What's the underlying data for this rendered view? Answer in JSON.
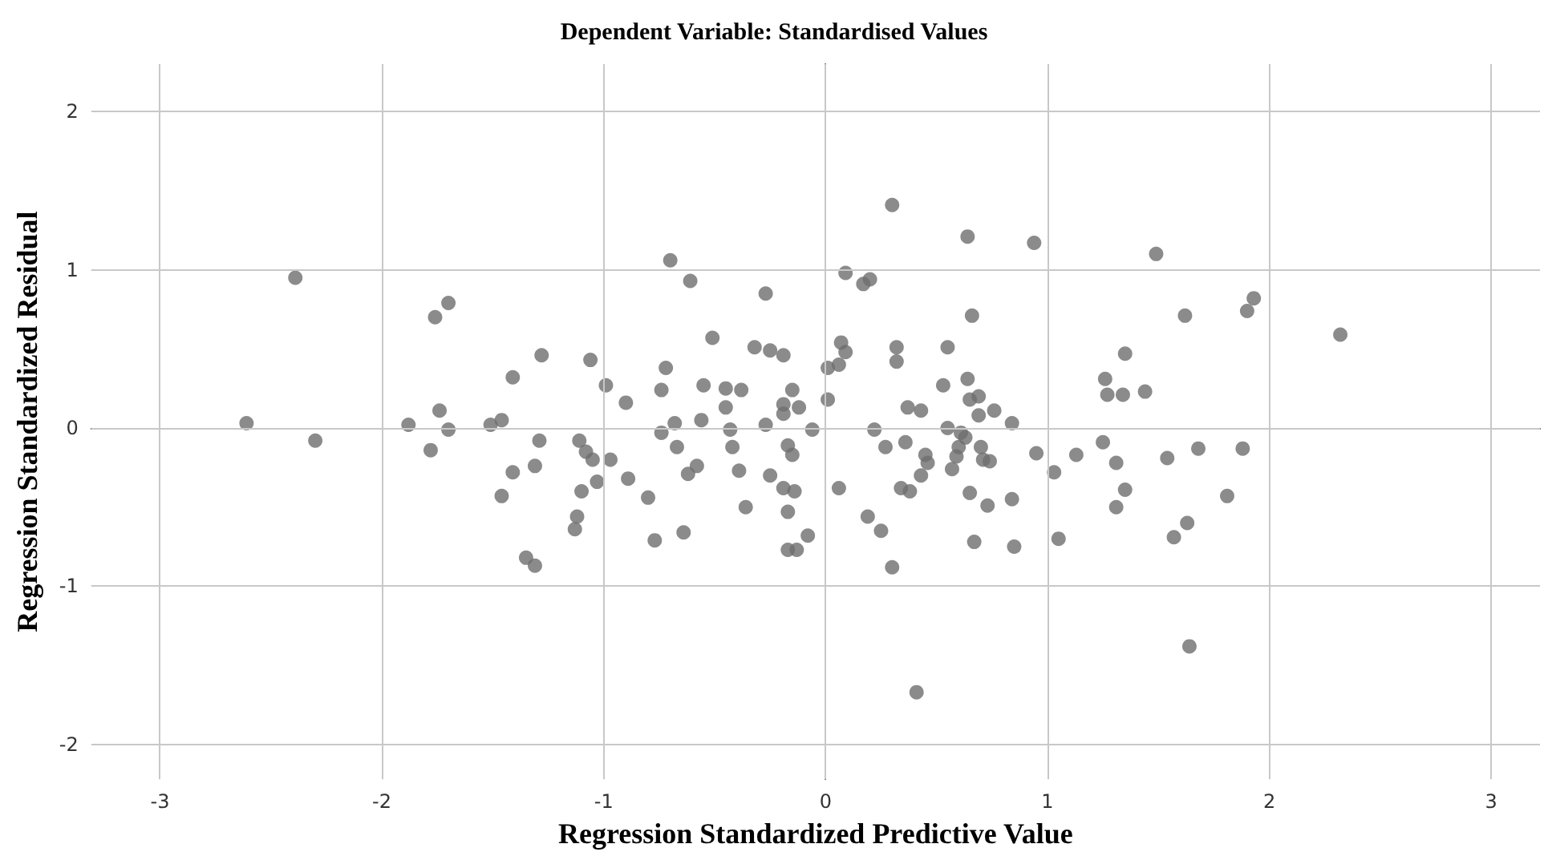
{
  "chart_data": {
    "type": "scatter",
    "title": "Dependent Variable: Standardised Values",
    "xlabel": "Regression Standardized Predictive Value",
    "ylabel": "Regression Standardized Residual",
    "xlim": [
      -3.31,
      3.22
    ],
    "ylim": [
      -2.22,
      2.3
    ],
    "xticks": [
      -3,
      -2,
      -1,
      0,
      1,
      2,
      3
    ],
    "yticks": [
      -2,
      -1,
      0,
      1,
      2
    ],
    "grid": true,
    "marker": "circle",
    "series": [
      {
        "color": "#6e6e6e",
        "x": [
          -2.39,
          -2.61,
          -2.3,
          -1.7,
          -1.76,
          -1.28,
          -1.06,
          -0.99,
          -1.41,
          -1.74,
          -1.88,
          -1.7,
          -1.78,
          -1.51,
          -1.46,
          -1.29,
          -1.31,
          -1.41,
          -1.46,
          -1.11,
          -1.08,
          -1.05,
          -0.97,
          -1.03,
          -1.1,
          -1.12,
          -1.13,
          -1.35,
          -1.31,
          -0.7,
          -0.61,
          -0.27,
          -0.51,
          -0.32,
          -0.25,
          -0.19,
          -0.9,
          -0.72,
          -0.74,
          -0.55,
          -0.45,
          -0.38,
          -0.45,
          -0.15,
          -0.19,
          -0.12,
          -0.19,
          -0.68,
          -0.74,
          -0.56,
          -0.43,
          -0.27,
          -0.06,
          -0.67,
          -0.42,
          -0.17,
          -0.15,
          -0.89,
          -0.62,
          -0.58,
          -0.39,
          -0.25,
          -0.19,
          -0.14,
          -0.8,
          -0.36,
          -0.17,
          -0.77,
          -0.64,
          -0.08,
          -0.17,
          -0.13,
          0.3,
          0.64,
          0.94,
          0.09,
          0.17,
          0.2,
          0.66,
          0.07,
          0.09,
          0.01,
          0.06,
          0.32,
          0.32,
          0.55,
          0.53,
          0.64,
          0.65,
          0.69,
          0.69,
          0.76,
          0.84,
          0.01,
          0.22,
          0.27,
          0.36,
          0.37,
          0.43,
          0.55,
          0.61,
          0.63,
          0.6,
          0.59,
          0.7,
          0.71,
          0.74,
          0.45,
          0.46,
          0.43,
          0.57,
          0.95,
          1.03,
          1.13,
          0.06,
          0.34,
          0.38,
          0.65,
          0.73,
          0.84,
          0.19,
          0.25,
          0.67,
          0.85,
          1.05,
          0.3,
          0.41,
          1.49,
          1.93,
          1.9,
          1.62,
          2.32,
          1.35,
          1.26,
          1.27,
          1.34,
          1.44,
          1.25,
          1.31,
          1.54,
          1.68,
          1.88,
          1.35,
          1.31,
          1.81,
          1.63,
          1.57,
          1.64
        ],
        "values": [
          0.95,
          0.03,
          -0.08,
          0.79,
          0.7,
          0.46,
          0.43,
          0.27,
          0.32,
          0.11,
          0.02,
          -0.01,
          -0.14,
          0.02,
          0.05,
          -0.08,
          -0.24,
          -0.28,
          -0.43,
          -0.08,
          -0.15,
          -0.2,
          -0.2,
          -0.34,
          -0.4,
          -0.56,
          -0.64,
          -0.82,
          -0.87,
          1.06,
          0.93,
          0.85,
          0.57,
          0.51,
          0.49,
          0.46,
          0.16,
          0.38,
          0.24,
          0.27,
          0.25,
          0.24,
          0.13,
          0.24,
          0.15,
          0.13,
          0.09,
          0.03,
          -0.03,
          0.05,
          -0.01,
          0.02,
          -0.01,
          -0.12,
          -0.12,
          -0.11,
          -0.17,
          -0.32,
          -0.29,
          -0.24,
          -0.27,
          -0.3,
          -0.38,
          -0.4,
          -0.44,
          -0.5,
          -0.53,
          -0.71,
          -0.66,
          -0.68,
          -0.77,
          -0.77,
          1.41,
          1.21,
          1.17,
          0.98,
          0.91,
          0.94,
          0.71,
          0.54,
          0.48,
          0.38,
          0.4,
          0.51,
          0.42,
          0.51,
          0.27,
          0.31,
          0.18,
          0.2,
          0.08,
          0.11,
          0.03,
          0.18,
          -0.01,
          -0.12,
          -0.09,
          0.13,
          0.11,
          0.0,
          -0.03,
          -0.06,
          -0.12,
          -0.18,
          -0.12,
          -0.2,
          -0.21,
          -0.17,
          -0.22,
          -0.3,
          -0.26,
          -0.16,
          -0.28,
          -0.17,
          -0.38,
          -0.38,
          -0.4,
          -0.41,
          -0.49,
          -0.45,
          -0.56,
          -0.65,
          -0.72,
          -0.75,
          -0.7,
          -0.88,
          -1.67,
          1.1,
          0.82,
          0.74,
          0.71,
          0.59,
          0.47,
          0.31,
          0.21,
          0.21,
          0.23,
          -0.09,
          -0.22,
          -0.19,
          -0.13,
          -0.13,
          -0.39,
          -0.5,
          -0.43,
          -0.6,
          -0.69,
          -1.38
        ]
      }
    ]
  }
}
